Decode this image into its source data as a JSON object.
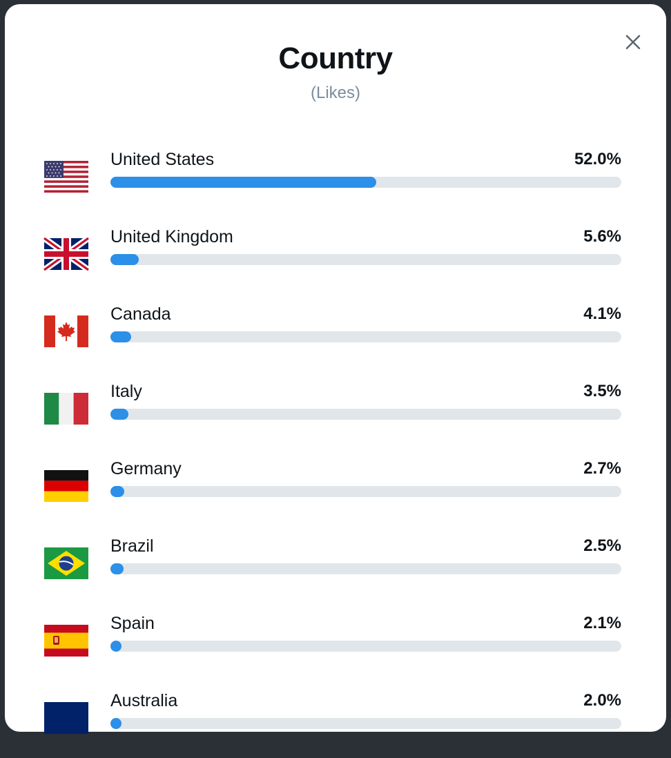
{
  "modal": {
    "title": "Country",
    "subtitle": "(Likes)"
  },
  "countries": [
    {
      "name": "United States",
      "pct_label": "52.0%",
      "value": 52.0,
      "flag": "flag-us-icon"
    },
    {
      "name": "United Kingdom",
      "pct_label": "5.6%",
      "value": 5.6,
      "flag": "flag-uk-icon"
    },
    {
      "name": "Canada",
      "pct_label": "4.1%",
      "value": 4.1,
      "flag": "flag-canada-icon"
    },
    {
      "name": "Italy",
      "pct_label": "3.5%",
      "value": 3.5,
      "flag": "flag-italy-icon"
    },
    {
      "name": "Germany",
      "pct_label": "2.7%",
      "value": 2.7,
      "flag": "flag-germany-icon"
    },
    {
      "name": "Brazil",
      "pct_label": "2.5%",
      "value": 2.5,
      "flag": "flag-brazil-icon"
    },
    {
      "name": "Spain",
      "pct_label": "2.1%",
      "value": 2.1,
      "flag": "flag-spain-icon"
    },
    {
      "name": "Australia",
      "pct_label": "2.0%",
      "value": 2.0,
      "flag": "flag-australia-icon"
    }
  ],
  "colors": {
    "bar_fill": "#2c8fe8",
    "bar_track": "#e1e6ea"
  }
}
